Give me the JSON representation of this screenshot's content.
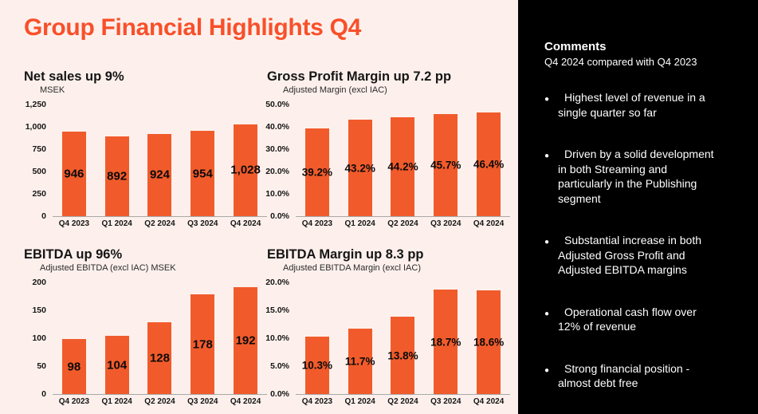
{
  "page": {
    "title": "Group Financial Highlights Q4",
    "colors": {
      "accent_title": "#F8502A",
      "bar_orange": "#F15B2B",
      "left_background": "#FDF0EC",
      "sidebar_background": "#000000",
      "sidebar_text": "#FFFFFF"
    }
  },
  "chart_data": [
    {
      "type": "bar",
      "title": "Net sales up 9%",
      "subtitle": "MSEK",
      "xlabel": "",
      "ylabel": "MSEK",
      "categories": [
        "Q4 2023",
        "Q1 2024",
        "Q2 2024",
        "Q3 2024",
        "Q4 2024"
      ],
      "values": [
        946,
        892,
        924,
        954,
        1028
      ],
      "labels": [
        "946",
        "892",
        "924",
        "954",
        "1,028"
      ],
      "ylim": [
        0,
        1250
      ],
      "ytick_values": [
        0,
        250,
        500,
        750,
        1000,
        1250
      ],
      "yticks": [
        "0",
        "250",
        "500",
        "750",
        "1,000",
        "1,250"
      ],
      "grid": false,
      "legend": "none"
    },
    {
      "type": "bar",
      "title": "Gross Profit Margin up 7.2 pp",
      "subtitle": "Adjusted Margin (excl IAC)",
      "xlabel": "",
      "ylabel": "Adjusted Margin (excl IAC)",
      "categories": [
        "Q4 2023",
        "Q1 2024",
        "Q2 2024",
        "Q3 2024",
        "Q4 2024"
      ],
      "values": [
        39.2,
        43.2,
        44.2,
        45.7,
        46.4
      ],
      "labels": [
        "39.2%",
        "43.2%",
        "44.2%",
        "45.7%",
        "46.4%"
      ],
      "ylim": [
        0,
        50
      ],
      "ytick_values": [
        0,
        10,
        20,
        30,
        40,
        50
      ],
      "yticks": [
        "0.0%",
        "10.0%",
        "20.0%",
        "30.0%",
        "40.0%",
        "50.0%"
      ],
      "grid": false,
      "legend": "none"
    },
    {
      "type": "bar",
      "title": "EBITDA up 96%",
      "subtitle": "Adjusted EBITDA (excl IAC) MSEK",
      "xlabel": "",
      "ylabel": "Adjusted EBITDA (excl IAC) MSEK",
      "categories": [
        "Q4 2023",
        "Q1 2024",
        "Q2 2024",
        "Q3 2024",
        "Q4 2024"
      ],
      "values": [
        98,
        104,
        128,
        178,
        192
      ],
      "labels": [
        "98",
        "104",
        "128",
        "178",
        "192"
      ],
      "ylim": [
        0,
        200
      ],
      "ytick_values": [
        0,
        50,
        100,
        150,
        200
      ],
      "yticks": [
        "0",
        "50",
        "100",
        "150",
        "200"
      ],
      "grid": false,
      "legend": "none"
    },
    {
      "type": "bar",
      "title": "EBITDA Margin up 8.3 pp",
      "subtitle": "Adjusted EBITDA Margin (excl IAC)",
      "xlabel": "",
      "ylabel": "Adjusted EBITDA Margin (excl IAC)",
      "categories": [
        "Q4 2023",
        "Q1 2024",
        "Q2 2024",
        "Q3 2024",
        "Q4 2024"
      ],
      "values": [
        10.3,
        11.7,
        13.8,
        18.7,
        18.6
      ],
      "labels": [
        "10.3%",
        "11.7%",
        "13.8%",
        "18.7%",
        "18.6%"
      ],
      "ylim": [
        0,
        20
      ],
      "ytick_values": [
        0,
        5,
        10,
        15,
        20
      ],
      "yticks": [
        "0.0%",
        "5.0%",
        "10.0%",
        "15.0%",
        "20.0%"
      ],
      "grid": false,
      "legend": "none"
    }
  ],
  "sidebar": {
    "heading": "Comments",
    "subheading": "Q4 2024 compared with Q4 2023",
    "bullet_glyph": "●",
    "bullets": [
      "Highest level of revenue in a\nsingle quarter so far",
      "Driven by a solid development\nin both Streaming and\nparticularly in the Publishing\nsegment",
      "Substantial increase in both\nAdjusted Gross Profit and\nAdjusted EBITDA margins",
      "Operational cash flow over\n12% of revenue",
      "Strong financial position -\nalmost debt free"
    ]
  }
}
